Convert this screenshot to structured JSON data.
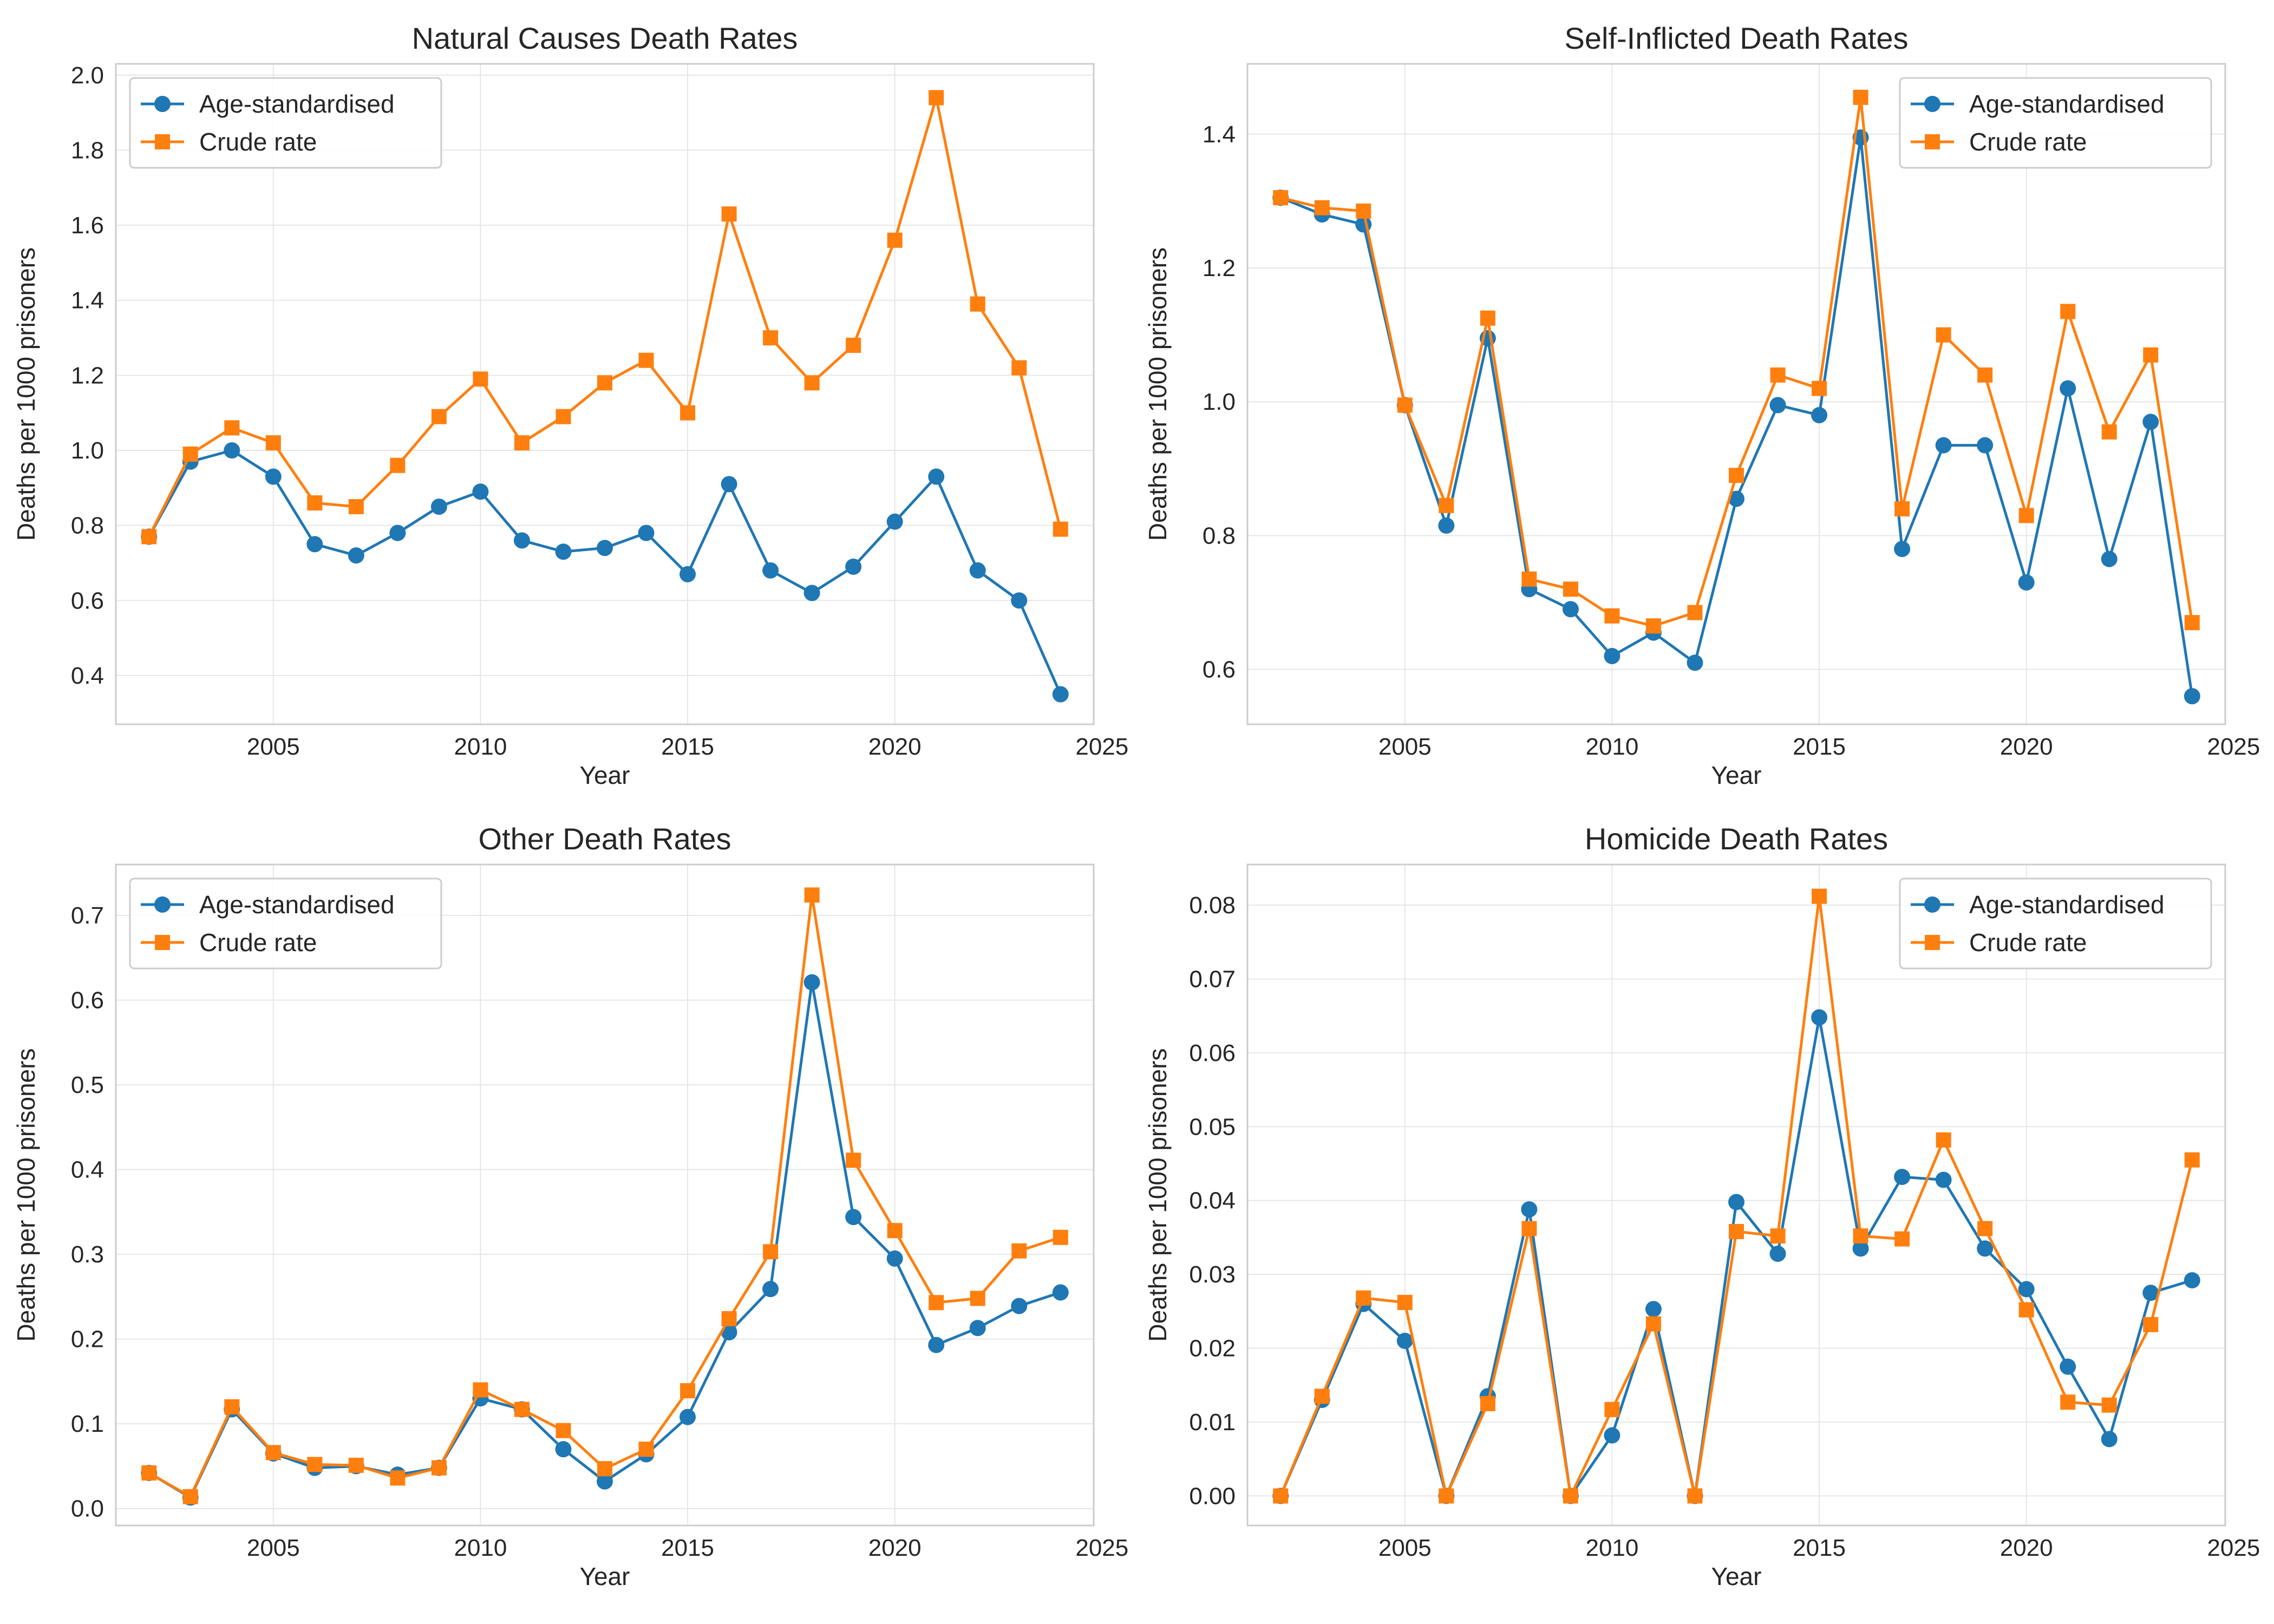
{
  "colors": {
    "age_standardised": "#1f77b4",
    "crude_rate": "#ff7f0e",
    "grid": "#e6e6e6",
    "frame": "#cccccc"
  },
  "chart_data": [
    {
      "type": "line",
      "title": "Natural Causes Death Rates",
      "xlabel": "Year",
      "ylabel": "Deaths per 1000 prisoners",
      "legend_position": "top-left",
      "grid": true,
      "xlim": [
        2001.2,
        2024.8
      ],
      "ylim": [
        0.27,
        2.03
      ],
      "xticks": [
        2005,
        2010,
        2015,
        2020,
        2025
      ],
      "xtick_labels": [
        "2005",
        "2010",
        "2015",
        "2020",
        "2025"
      ],
      "yticks": [
        0.4,
        0.6,
        0.8,
        1.0,
        1.2,
        1.4,
        1.6,
        1.8,
        2.0
      ],
      "ytick_labels": [
        "0.4",
        "0.6",
        "0.8",
        "1.0",
        "1.2",
        "1.4",
        "1.6",
        "1.8",
        "2.0"
      ],
      "x": [
        2002,
        2003,
        2004,
        2005,
        2006,
        2007,
        2008,
        2009,
        2010,
        2011,
        2012,
        2013,
        2014,
        2015,
        2016,
        2017,
        2018,
        2019,
        2020,
        2021,
        2022,
        2023,
        2024
      ],
      "series": [
        {
          "name": "Age-standardised",
          "marker": "circle",
          "values": [
            0.77,
            0.97,
            1.0,
            0.93,
            0.75,
            0.72,
            0.78,
            0.85,
            0.89,
            0.76,
            0.73,
            0.74,
            0.78,
            0.67,
            0.91,
            0.68,
            0.62,
            0.69,
            0.81,
            0.93,
            0.68,
            0.6,
            0.35
          ]
        },
        {
          "name": "Crude rate",
          "marker": "square",
          "values": [
            0.77,
            0.99,
            1.06,
            1.02,
            0.86,
            0.85,
            0.96,
            1.09,
            1.19,
            1.02,
            1.09,
            1.18,
            1.24,
            1.1,
            1.63,
            1.3,
            1.18,
            1.28,
            1.56,
            1.94,
            1.39,
            1.22,
            0.79
          ]
        }
      ]
    },
    {
      "type": "line",
      "title": "Self-Inflicted Death Rates",
      "xlabel": "Year",
      "ylabel": "Deaths per 1000 prisoners",
      "legend_position": "top-right",
      "grid": true,
      "xlim": [
        2001.2,
        2024.8
      ],
      "ylim": [
        0.518,
        1.505
      ],
      "xticks": [
        2005,
        2010,
        2015,
        2020,
        2025
      ],
      "xtick_labels": [
        "2005",
        "2010",
        "2015",
        "2020",
        "2025"
      ],
      "yticks": [
        0.6,
        0.8,
        1.0,
        1.2,
        1.4
      ],
      "ytick_labels": [
        "0.6",
        "0.8",
        "1.0",
        "1.2",
        "1.4"
      ],
      "x": [
        2002,
        2003,
        2004,
        2005,
        2006,
        2007,
        2008,
        2009,
        2010,
        2011,
        2012,
        2013,
        2014,
        2015,
        2016,
        2017,
        2018,
        2019,
        2020,
        2021,
        2022,
        2023,
        2024
      ],
      "series": [
        {
          "name": "Age-standardised",
          "marker": "circle",
          "values": [
            1.305,
            1.28,
            1.265,
            0.995,
            0.815,
            1.095,
            0.72,
            0.69,
            0.62,
            0.655,
            0.61,
            0.855,
            0.995,
            0.98,
            1.395,
            0.78,
            0.935,
            0.935,
            0.73,
            1.02,
            0.765,
            0.97,
            0.56
          ]
        },
        {
          "name": "Crude rate",
          "marker": "square",
          "values": [
            1.305,
            1.29,
            1.285,
            0.995,
            0.845,
            1.125,
            0.735,
            0.72,
            0.68,
            0.665,
            0.685,
            0.89,
            1.04,
            1.02,
            1.455,
            0.84,
            1.1,
            1.04,
            0.83,
            1.135,
            0.955,
            1.07,
            0.67
          ]
        }
      ]
    },
    {
      "type": "line",
      "title": "Other Death Rates",
      "xlabel": "Year",
      "ylabel": "Deaths per 1000 prisoners",
      "legend_position": "top-left",
      "grid": true,
      "xlim": [
        2001.2,
        2024.8
      ],
      "ylim": [
        -0.02,
        0.76
      ],
      "xticks": [
        2005,
        2010,
        2015,
        2020,
        2025
      ],
      "xtick_labels": [
        "2005",
        "2010",
        "2015",
        "2020",
        "2025"
      ],
      "yticks": [
        0.0,
        0.1,
        0.2,
        0.3,
        0.4,
        0.5,
        0.6,
        0.7
      ],
      "ytick_labels": [
        "0.0",
        "0.1",
        "0.2",
        "0.3",
        "0.4",
        "0.5",
        "0.6",
        "0.7"
      ],
      "x": [
        2002,
        2003,
        2004,
        2005,
        2006,
        2007,
        2008,
        2009,
        2010,
        2011,
        2012,
        2013,
        2014,
        2015,
        2016,
        2017,
        2018,
        2019,
        2020,
        2021,
        2022,
        2023,
        2024
      ],
      "series": [
        {
          "name": "Age-standardised",
          "marker": "circle",
          "values": [
            0.042,
            0.013,
            0.117,
            0.065,
            0.048,
            0.05,
            0.04,
            0.048,
            0.13,
            0.117,
            0.07,
            0.032,
            0.064,
            0.108,
            0.208,
            0.259,
            0.621,
            0.344,
            0.295,
            0.193,
            0.213,
            0.239,
            0.255
          ]
        },
        {
          "name": "Crude rate",
          "marker": "square",
          "values": [
            0.042,
            0.014,
            0.12,
            0.066,
            0.052,
            0.051,
            0.036,
            0.048,
            0.14,
            0.117,
            0.092,
            0.047,
            0.07,
            0.139,
            0.224,
            0.303,
            0.724,
            0.411,
            0.328,
            0.243,
            0.248,
            0.304,
            0.32
          ]
        }
      ]
    },
    {
      "type": "line",
      "title": "Homicide Death Rates",
      "xlabel": "Year",
      "ylabel": "Deaths per 1000 prisoners",
      "legend_position": "top-right",
      "grid": true,
      "xlim": [
        2001.2,
        2024.8
      ],
      "ylim": [
        -0.004,
        0.0855
      ],
      "xticks": [
        2005,
        2010,
        2015,
        2020,
        2025
      ],
      "xtick_labels": [
        "2005",
        "2010",
        "2015",
        "2020",
        "2025"
      ],
      "yticks": [
        0.0,
        0.01,
        0.02,
        0.03,
        0.04,
        0.05,
        0.06,
        0.07,
        0.08
      ],
      "ytick_labels": [
        "0.00",
        "0.01",
        "0.02",
        "0.03",
        "0.04",
        "0.05",
        "0.06",
        "0.07",
        "0.08"
      ],
      "x": [
        2002,
        2003,
        2004,
        2005,
        2006,
        2007,
        2008,
        2009,
        2010,
        2011,
        2012,
        2013,
        2014,
        2015,
        2016,
        2017,
        2018,
        2019,
        2020,
        2021,
        2022,
        2023,
        2024
      ],
      "series": [
        {
          "name": "Age-standardised",
          "marker": "circle",
          "values": [
            0.0,
            0.013,
            0.026,
            0.021,
            0.0,
            0.0135,
            0.0388,
            0.0,
            0.0082,
            0.0253,
            0.0,
            0.0398,
            0.0328,
            0.0648,
            0.0335,
            0.0432,
            0.0428,
            0.0335,
            0.028,
            0.0175,
            0.0077,
            0.0275,
            0.0292
          ]
        },
        {
          "name": "Crude rate",
          "marker": "square",
          "values": [
            0.0,
            0.0135,
            0.0268,
            0.0262,
            0.0,
            0.0125,
            0.0362,
            0.0,
            0.0117,
            0.0233,
            0.0,
            0.0358,
            0.0352,
            0.0812,
            0.0352,
            0.0348,
            0.0482,
            0.0362,
            0.0252,
            0.0127,
            0.0123,
            0.0232,
            0.0455
          ]
        }
      ]
    }
  ]
}
